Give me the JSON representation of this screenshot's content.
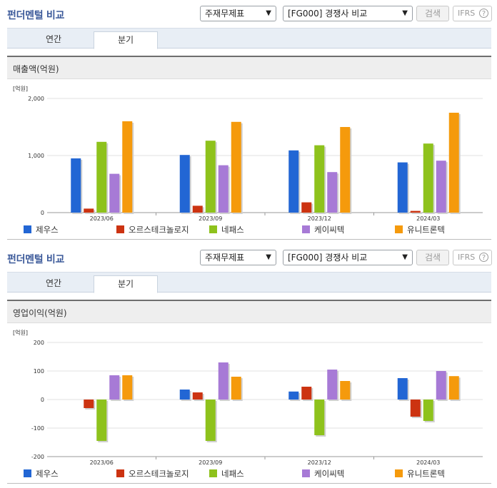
{
  "panels": [
    {
      "title": "펀더멘털 비교",
      "select1": "주재무제표",
      "select2": "[FG000] 경쟁사 비교",
      "search_label": "검색",
      "ifrs_label": "IFRS",
      "ifrs_help": "?",
      "tabs": [
        "연간",
        "분기"
      ],
      "active_tab": 1,
      "chart_title": "매출액(억원)",
      "unit": "[억원]"
    },
    {
      "title": "펀더멘털 비교",
      "select1": "주재무제표",
      "select2": "[FG000] 경쟁사 비교",
      "search_label": "검색",
      "ifrs_label": "IFRS",
      "ifrs_help": "?",
      "tabs": [
        "연간",
        "분기"
      ],
      "active_tab": 1,
      "chart_title": "영업이익(억원)",
      "unit": "[억원]"
    }
  ],
  "chart_data": [
    {
      "type": "bar",
      "title": "매출액(억원)",
      "unit": "[억원]",
      "categories": [
        "2023/06",
        "2023/09",
        "2023/12",
        "2024/03"
      ],
      "ylim": [
        0,
        2000
      ],
      "yticks": [
        0,
        1000,
        2000
      ],
      "ytick_labels": [
        "0",
        "1,000",
        "2,000"
      ],
      "legend_position": "bottom",
      "grid": true,
      "series": [
        {
          "name": "제우스",
          "color": "#2266d4",
          "values": [
            950,
            1010,
            1090,
            880
          ]
        },
        {
          "name": "오르스테크놀로지",
          "color": "#cc3311",
          "values": [
            70,
            120,
            180,
            30
          ]
        },
        {
          "name": "네패스",
          "color": "#8ec21c",
          "values": [
            1240,
            1260,
            1180,
            1210
          ]
        },
        {
          "name": "케이씨텍",
          "color": "#a77ad6",
          "values": [
            680,
            830,
            710,
            910
          ]
        },
        {
          "name": "유니트론텍",
          "color": "#f59a0c",
          "values": [
            1600,
            1590,
            1500,
            1750
          ]
        }
      ]
    },
    {
      "type": "bar",
      "title": "영업이익(억원)",
      "unit": "[억원]",
      "categories": [
        "2023/06",
        "2023/09",
        "2023/12",
        "2024/03"
      ],
      "ylim": [
        -200,
        200
      ],
      "yticks": [
        -200,
        -100,
        0,
        100,
        200
      ],
      "ytick_labels": [
        "-200",
        "-100",
        "0",
        "100",
        "200"
      ],
      "legend_position": "bottom",
      "grid": true,
      "series": [
        {
          "name": "제우스",
          "color": "#2266d4",
          "values": [
            0,
            35,
            28,
            75
          ]
        },
        {
          "name": "오르스테크놀로지",
          "color": "#cc3311",
          "values": [
            -30,
            25,
            45,
            -60
          ]
        },
        {
          "name": "네패스",
          "color": "#8ec21c",
          "values": [
            -145,
            -145,
            -125,
            -75
          ]
        },
        {
          "name": "케이씨텍",
          "color": "#a77ad6",
          "values": [
            85,
            130,
            105,
            100
          ]
        },
        {
          "name": "유니트론텍",
          "color": "#f59a0c",
          "values": [
            85,
            80,
            65,
            82
          ]
        }
      ]
    }
  ]
}
